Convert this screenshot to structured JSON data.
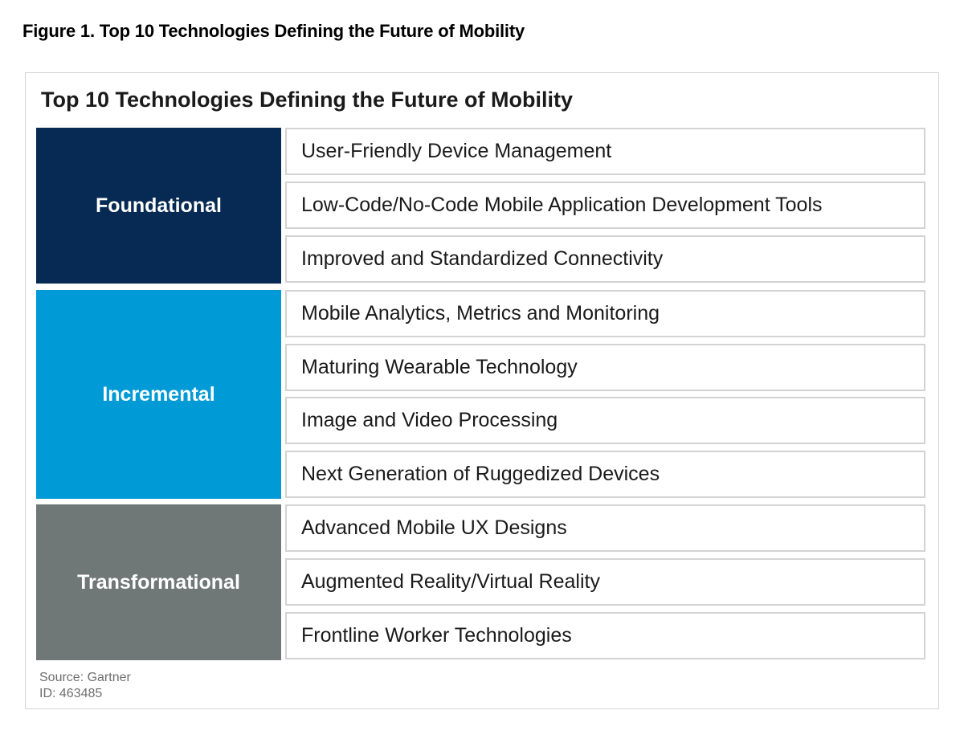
{
  "figure_caption": "Figure 1. Top 10 Technologies Defining the Future of Mobility",
  "title": "Top 10 Technologies Defining the Future of Mobility",
  "colors": {
    "foundational": "#062a53",
    "incremental": "#009ad6",
    "transformational": "#707877",
    "item_border": "#d3d3d3"
  },
  "categories": [
    {
      "label": "Foundational",
      "items": [
        "User-Friendly Device Management",
        "Low-Code/No-Code Mobile Application Development Tools",
        "Improved and Standardized Connectivity"
      ]
    },
    {
      "label": "Incremental",
      "items": [
        "Mobile Analytics, Metrics and Monitoring",
        "Maturing Wearable Technology",
        "Image and Video Processing",
        "Next Generation of Ruggedized Devices"
      ]
    },
    {
      "label": "Transformational",
      "items": [
        "Advanced Mobile UX Designs",
        "Augmented Reality/Virtual Reality",
        "Frontline Worker Technologies"
      ]
    }
  ],
  "source": "Source: Gartner",
  "id": "ID: 463485"
}
